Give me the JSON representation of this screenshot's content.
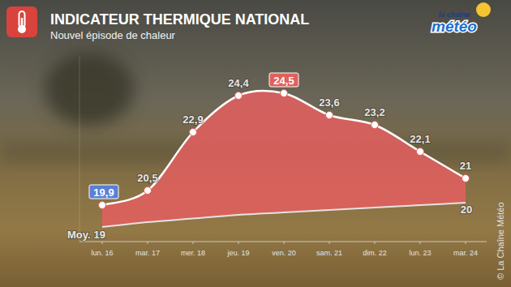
{
  "chart_data": {
    "type": "area",
    "title": "INDICATEUR THERMIQUE NATIONAL",
    "subtitle": "Nouvel épisode de chaleur",
    "logo": {
      "top": "la chaîne",
      "bottom": "météo"
    },
    "source": "© La Chaîne Météo",
    "categories": [
      "lun. 16",
      "mar. 17",
      "mer. 18",
      "jeu. 19",
      "ven. 20",
      "sam. 21",
      "dim. 22",
      "lun. 23",
      "mar. 24"
    ],
    "series": [
      {
        "values": [
          19.9,
          20.5,
          22.9,
          24.4,
          24.5,
          23.6,
          23.2,
          22.1,
          21
        ],
        "value_labels": [
          "19,9",
          "20,5",
          "22,9",
          "24,4",
          "24,5",
          "23,6",
          "23,2",
          "22,1",
          "21"
        ],
        "color": "#e45f5f",
        "marker": "circle"
      },
      {
        "name": "Moy.",
        "values": [
          19,
          19.2,
          19.35,
          19.5,
          19.6,
          19.7,
          19.8,
          19.9,
          20
        ],
        "value_labels": [
          "19",
          null,
          null,
          null,
          null,
          null,
          null,
          null,
          "20"
        ],
        "color": "#e6e2e2",
        "line_style": "solid"
      }
    ],
    "ylim": [
      18.4,
      26
    ],
    "yticks": [],
    "tick_labels": "x",
    "data_labels": true,
    "grid": false
  }
}
